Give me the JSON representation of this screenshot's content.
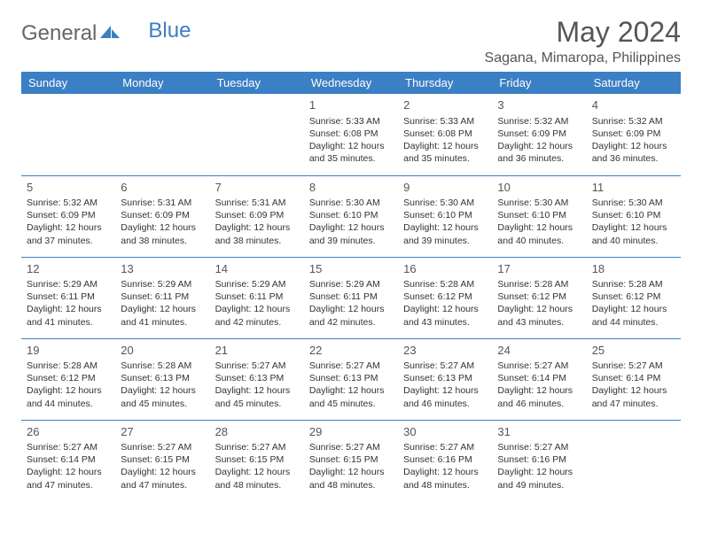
{
  "brand": {
    "text1": "General",
    "text2": "Blue",
    "icon_color": "#3b7fc4"
  },
  "title": "May 2024",
  "location": "Sagana, Mimaropa, Philippines",
  "colors": {
    "header_bg": "#3b7fc4",
    "border": "#3b7fc4"
  },
  "weekdays": [
    "Sunday",
    "Monday",
    "Tuesday",
    "Wednesday",
    "Thursday",
    "Friday",
    "Saturday"
  ],
  "weeks": [
    [
      null,
      null,
      null,
      {
        "n": "1",
        "sr": "Sunrise: 5:33 AM",
        "ss": "Sunset: 6:08 PM",
        "d1": "Daylight: 12 hours",
        "d2": "and 35 minutes."
      },
      {
        "n": "2",
        "sr": "Sunrise: 5:33 AM",
        "ss": "Sunset: 6:08 PM",
        "d1": "Daylight: 12 hours",
        "d2": "and 35 minutes."
      },
      {
        "n": "3",
        "sr": "Sunrise: 5:32 AM",
        "ss": "Sunset: 6:09 PM",
        "d1": "Daylight: 12 hours",
        "d2": "and 36 minutes."
      },
      {
        "n": "4",
        "sr": "Sunrise: 5:32 AM",
        "ss": "Sunset: 6:09 PM",
        "d1": "Daylight: 12 hours",
        "d2": "and 36 minutes."
      }
    ],
    [
      {
        "n": "5",
        "sr": "Sunrise: 5:32 AM",
        "ss": "Sunset: 6:09 PM",
        "d1": "Daylight: 12 hours",
        "d2": "and 37 minutes."
      },
      {
        "n": "6",
        "sr": "Sunrise: 5:31 AM",
        "ss": "Sunset: 6:09 PM",
        "d1": "Daylight: 12 hours",
        "d2": "and 38 minutes."
      },
      {
        "n": "7",
        "sr": "Sunrise: 5:31 AM",
        "ss": "Sunset: 6:09 PM",
        "d1": "Daylight: 12 hours",
        "d2": "and 38 minutes."
      },
      {
        "n": "8",
        "sr": "Sunrise: 5:30 AM",
        "ss": "Sunset: 6:10 PM",
        "d1": "Daylight: 12 hours",
        "d2": "and 39 minutes."
      },
      {
        "n": "9",
        "sr": "Sunrise: 5:30 AM",
        "ss": "Sunset: 6:10 PM",
        "d1": "Daylight: 12 hours",
        "d2": "and 39 minutes."
      },
      {
        "n": "10",
        "sr": "Sunrise: 5:30 AM",
        "ss": "Sunset: 6:10 PM",
        "d1": "Daylight: 12 hours",
        "d2": "and 40 minutes."
      },
      {
        "n": "11",
        "sr": "Sunrise: 5:30 AM",
        "ss": "Sunset: 6:10 PM",
        "d1": "Daylight: 12 hours",
        "d2": "and 40 minutes."
      }
    ],
    [
      {
        "n": "12",
        "sr": "Sunrise: 5:29 AM",
        "ss": "Sunset: 6:11 PM",
        "d1": "Daylight: 12 hours",
        "d2": "and 41 minutes."
      },
      {
        "n": "13",
        "sr": "Sunrise: 5:29 AM",
        "ss": "Sunset: 6:11 PM",
        "d1": "Daylight: 12 hours",
        "d2": "and 41 minutes."
      },
      {
        "n": "14",
        "sr": "Sunrise: 5:29 AM",
        "ss": "Sunset: 6:11 PM",
        "d1": "Daylight: 12 hours",
        "d2": "and 42 minutes."
      },
      {
        "n": "15",
        "sr": "Sunrise: 5:29 AM",
        "ss": "Sunset: 6:11 PM",
        "d1": "Daylight: 12 hours",
        "d2": "and 42 minutes."
      },
      {
        "n": "16",
        "sr": "Sunrise: 5:28 AM",
        "ss": "Sunset: 6:12 PM",
        "d1": "Daylight: 12 hours",
        "d2": "and 43 minutes."
      },
      {
        "n": "17",
        "sr": "Sunrise: 5:28 AM",
        "ss": "Sunset: 6:12 PM",
        "d1": "Daylight: 12 hours",
        "d2": "and 43 minutes."
      },
      {
        "n": "18",
        "sr": "Sunrise: 5:28 AM",
        "ss": "Sunset: 6:12 PM",
        "d1": "Daylight: 12 hours",
        "d2": "and 44 minutes."
      }
    ],
    [
      {
        "n": "19",
        "sr": "Sunrise: 5:28 AM",
        "ss": "Sunset: 6:12 PM",
        "d1": "Daylight: 12 hours",
        "d2": "and 44 minutes."
      },
      {
        "n": "20",
        "sr": "Sunrise: 5:28 AM",
        "ss": "Sunset: 6:13 PM",
        "d1": "Daylight: 12 hours",
        "d2": "and 45 minutes."
      },
      {
        "n": "21",
        "sr": "Sunrise: 5:27 AM",
        "ss": "Sunset: 6:13 PM",
        "d1": "Daylight: 12 hours",
        "d2": "and 45 minutes."
      },
      {
        "n": "22",
        "sr": "Sunrise: 5:27 AM",
        "ss": "Sunset: 6:13 PM",
        "d1": "Daylight: 12 hours",
        "d2": "and 45 minutes."
      },
      {
        "n": "23",
        "sr": "Sunrise: 5:27 AM",
        "ss": "Sunset: 6:13 PM",
        "d1": "Daylight: 12 hours",
        "d2": "and 46 minutes."
      },
      {
        "n": "24",
        "sr": "Sunrise: 5:27 AM",
        "ss": "Sunset: 6:14 PM",
        "d1": "Daylight: 12 hours",
        "d2": "and 46 minutes."
      },
      {
        "n": "25",
        "sr": "Sunrise: 5:27 AM",
        "ss": "Sunset: 6:14 PM",
        "d1": "Daylight: 12 hours",
        "d2": "and 47 minutes."
      }
    ],
    [
      {
        "n": "26",
        "sr": "Sunrise: 5:27 AM",
        "ss": "Sunset: 6:14 PM",
        "d1": "Daylight: 12 hours",
        "d2": "and 47 minutes."
      },
      {
        "n": "27",
        "sr": "Sunrise: 5:27 AM",
        "ss": "Sunset: 6:15 PM",
        "d1": "Daylight: 12 hours",
        "d2": "and 47 minutes."
      },
      {
        "n": "28",
        "sr": "Sunrise: 5:27 AM",
        "ss": "Sunset: 6:15 PM",
        "d1": "Daylight: 12 hours",
        "d2": "and 48 minutes."
      },
      {
        "n": "29",
        "sr": "Sunrise: 5:27 AM",
        "ss": "Sunset: 6:15 PM",
        "d1": "Daylight: 12 hours",
        "d2": "and 48 minutes."
      },
      {
        "n": "30",
        "sr": "Sunrise: 5:27 AM",
        "ss": "Sunset: 6:16 PM",
        "d1": "Daylight: 12 hours",
        "d2": "and 48 minutes."
      },
      {
        "n": "31",
        "sr": "Sunrise: 5:27 AM",
        "ss": "Sunset: 6:16 PM",
        "d1": "Daylight: 12 hours",
        "d2": "and 49 minutes."
      },
      null
    ]
  ]
}
